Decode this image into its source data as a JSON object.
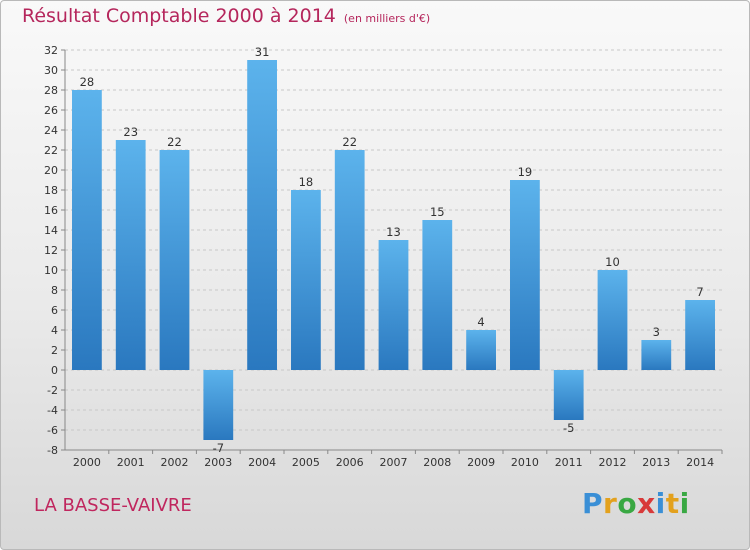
{
  "title": "Résultat Comptable 2000 à 2014",
  "unit_note": "(en milliers d'€)",
  "commune": "LA BASSE-VAIVRE",
  "logo": {
    "text": "Proxiti",
    "letter_colors": [
      "#3a8fd6",
      "#e3a11d",
      "#39a843",
      "#d83a3a",
      "#3a8fd6",
      "#e3a11d",
      "#39a843"
    ]
  },
  "colors": {
    "title": "#b5265c",
    "bar_top": "#5cb3ec",
    "bar_bottom": "#2a78bf",
    "grid": "#c8c8c8"
  },
  "chart_data": {
    "type": "bar",
    "title": "Résultat Comptable 2000 à 2014",
    "ylabel": "(en milliers d'€)",
    "xlabel": "",
    "categories": [
      "2000",
      "2001",
      "2002",
      "2003",
      "2004",
      "2005",
      "2006",
      "2007",
      "2008",
      "2009",
      "2010",
      "2011",
      "2012",
      "2013",
      "2014"
    ],
    "values": [
      28,
      23,
      22,
      -7,
      31,
      18,
      22,
      13,
      15,
      4,
      19,
      -5,
      10,
      3,
      7
    ],
    "ylim": [
      -8,
      32
    ],
    "yticks": [
      32,
      30,
      28,
      26,
      24,
      22,
      20,
      18,
      16,
      14,
      12,
      10,
      8,
      6,
      4,
      2,
      0,
      -2,
      -4,
      -6,
      -8
    ],
    "grid": true,
    "legend": "none"
  }
}
